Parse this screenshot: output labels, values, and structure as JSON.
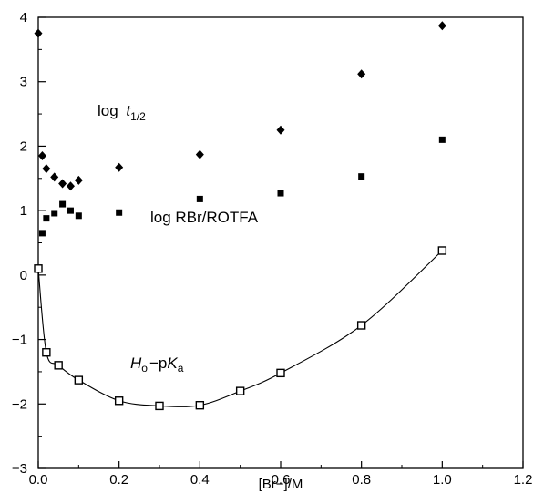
{
  "chart_data": {
    "type": "scatter",
    "title": "",
    "xlabel": "[Br−]/M",
    "ylabel": "",
    "xlim": [
      0.0,
      1.2
    ],
    "ylim": [
      -3,
      4
    ],
    "x_ticks": [
      "0.0",
      "0.2",
      "0.4",
      "0.6",
      "0.8",
      "1.0",
      "1.2"
    ],
    "y_ticks": [
      "−3",
      "−2",
      "−1",
      "0",
      "1",
      "2",
      "3",
      "4"
    ],
    "grid": false,
    "series": [
      {
        "marker": "diamond-filled",
        "color": "#000000",
        "points": [
          [
            0.0,
            3.75
          ],
          [
            0.01,
            1.85
          ],
          [
            0.02,
            1.65
          ],
          [
            0.04,
            1.52
          ],
          [
            0.06,
            1.42
          ],
          [
            0.08,
            1.38
          ],
          [
            0.1,
            1.47
          ],
          [
            0.2,
            1.67
          ],
          [
            0.4,
            1.87
          ],
          [
            0.6,
            2.25
          ],
          [
            0.8,
            3.12
          ],
          [
            1.0,
            3.87
          ]
        ]
      },
      {
        "marker": "square-filled",
        "color": "#000000",
        "points": [
          [
            0.01,
            0.65
          ],
          [
            0.02,
            0.88
          ],
          [
            0.04,
            0.96
          ],
          [
            0.06,
            1.1
          ],
          [
            0.08,
            1.0
          ],
          [
            0.1,
            0.92
          ],
          [
            0.2,
            0.97
          ],
          [
            0.4,
            1.18
          ],
          [
            0.6,
            1.27
          ],
          [
            0.8,
            1.53
          ],
          [
            1.0,
            2.1
          ]
        ]
      },
      {
        "marker": "square-open",
        "color": "#000000",
        "line": "smooth",
        "points": [
          [
            0.0,
            0.1
          ],
          [
            0.02,
            -1.2
          ],
          [
            0.05,
            -1.4
          ],
          [
            0.1,
            -1.63
          ],
          [
            0.2,
            -1.95
          ],
          [
            0.3,
            -2.03
          ],
          [
            0.4,
            -2.02
          ],
          [
            0.5,
            -1.8
          ],
          [
            0.6,
            -1.52
          ],
          [
            0.8,
            -0.78
          ],
          [
            1.0,
            0.38
          ]
        ]
      }
    ],
    "annotations": {
      "log_t_half": {
        "pre": "log ",
        "var": "t",
        "sub": "1/2"
      },
      "log_ratio": "log RBr/ROTFA",
      "acidity": {
        "H": "H",
        "H_sub": "o",
        "minus": "−p",
        "K": "K",
        "K_sub": "a"
      }
    }
  }
}
